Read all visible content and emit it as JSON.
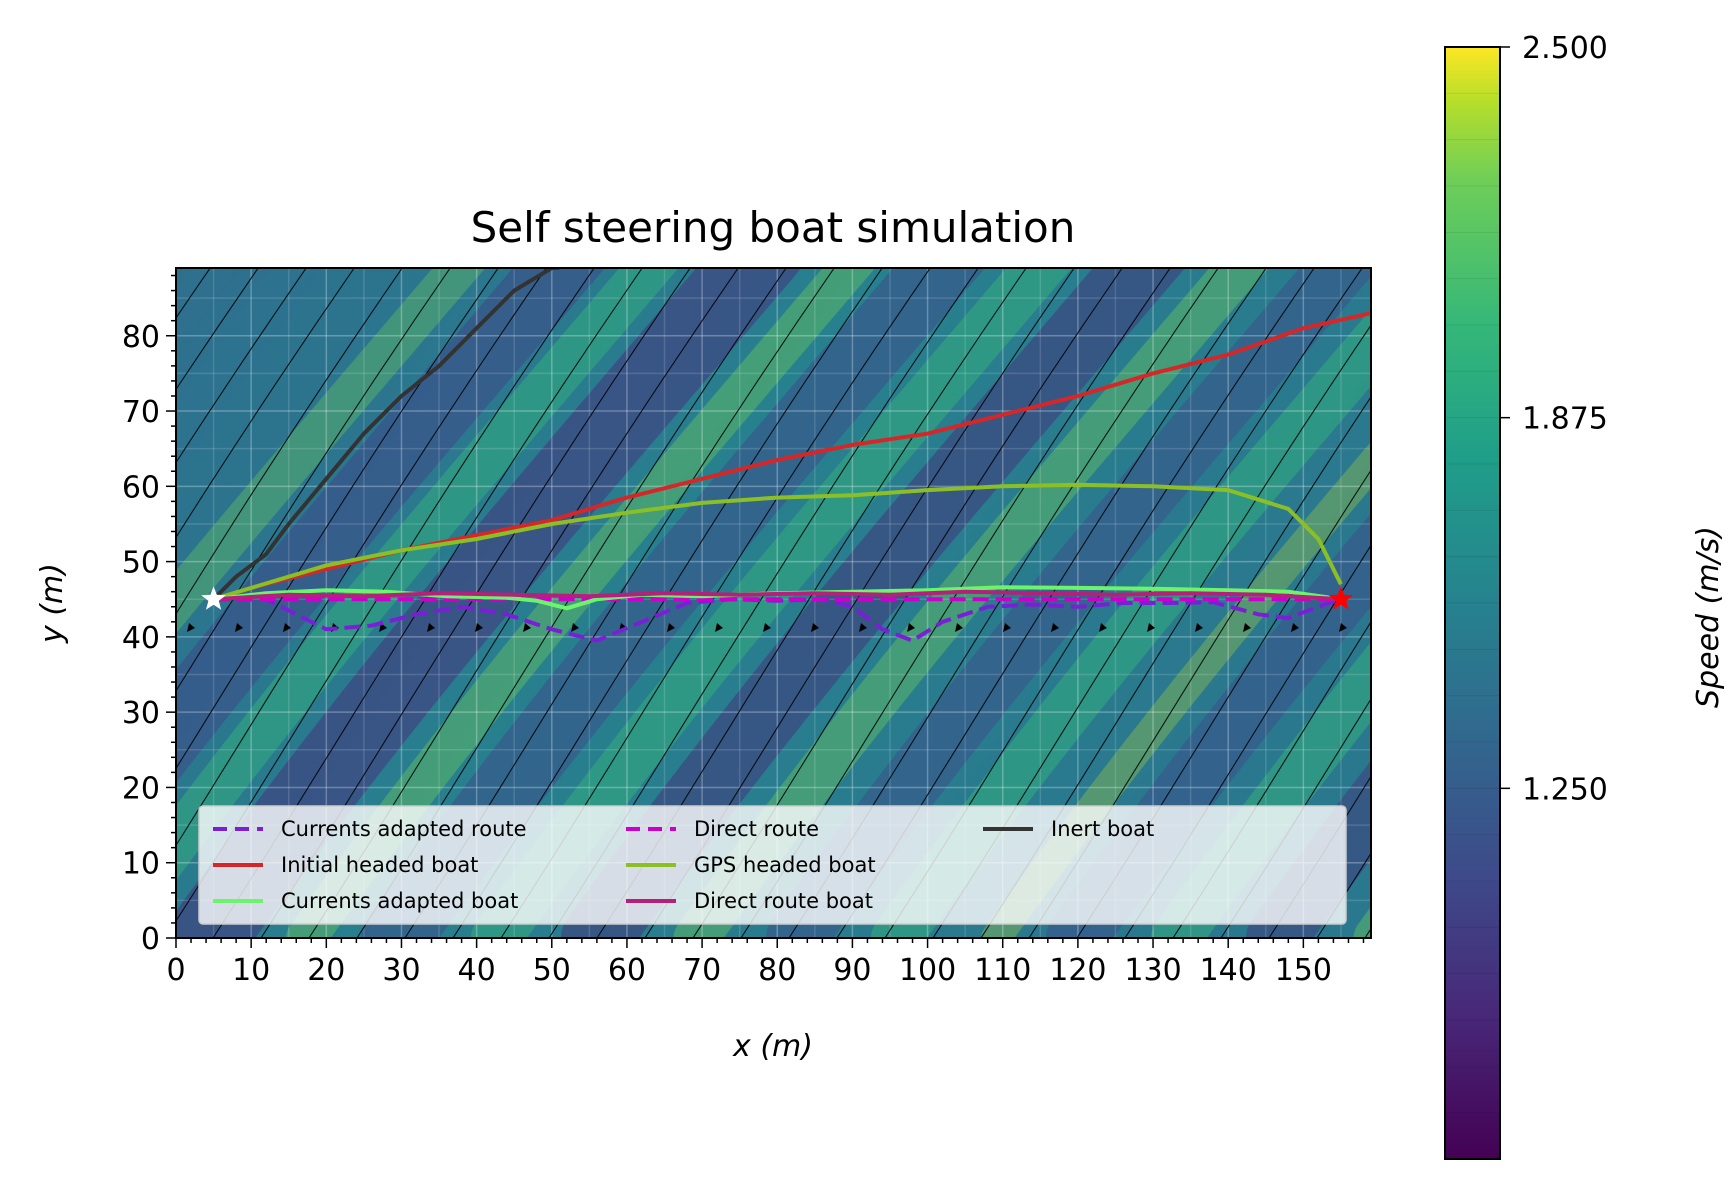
{
  "chart_data": {
    "type": "line",
    "title": "Self steering boat simulation",
    "xlabel": "x (m)",
    "ylabel": "y (m)",
    "xlim": [
      0,
      159
    ],
    "ylim": [
      0,
      89
    ],
    "x_ticks": [
      "0",
      "10",
      "20",
      "30",
      "40",
      "50",
      "60",
      "70",
      "80",
      "90",
      "100",
      "110",
      "120",
      "130",
      "140",
      "150"
    ],
    "y_ticks": [
      "0",
      "10",
      "20",
      "30",
      "40",
      "50",
      "60",
      "70",
      "80"
    ],
    "x_tick_values": [
      0,
      10,
      20,
      30,
      40,
      50,
      60,
      70,
      80,
      90,
      100,
      110,
      120,
      130,
      140,
      150
    ],
    "y_tick_values": [
      0,
      10,
      20,
      30,
      40,
      50,
      60,
      70,
      80
    ],
    "grid": true,
    "background": "current speed heatmap with streamlines (viridis)",
    "start_point": {
      "x": 5,
      "y": 45,
      "color": "#ffffff"
    },
    "end_point": {
      "x": 155,
      "y": 45,
      "color": "#ff0000"
    },
    "legend_placement": "lower-center",
    "series": [
      {
        "name": "Currents adapted route",
        "color": "#7a1fd6",
        "dash": true,
        "x": [
          5,
          12,
          16,
          20,
          26,
          32,
          38,
          44,
          50,
          56,
          62,
          68,
          74,
          80,
          86,
          90,
          94,
          98,
          102,
          108,
          114,
          120,
          126,
          132,
          138,
          144,
          148,
          152,
          155
        ],
        "y": [
          45,
          45,
          43,
          41,
          41.5,
          43,
          44,
          43,
          41,
          39.5,
          42,
          44.5,
          45,
          44.8,
          45,
          44,
          41,
          39.5,
          42,
          44,
          44.3,
          44,
          44.5,
          44.5,
          44.6,
          43,
          42.5,
          44,
          45
        ]
      },
      {
        "name": "Direct route",
        "color": "#cc00cc",
        "dash": true,
        "x": [
          5,
          155
        ],
        "y": [
          45,
          45
        ]
      },
      {
        "name": "Inert boat",
        "color": "#333333",
        "dash": false,
        "x": [
          5,
          8,
          12,
          15,
          20,
          25,
          30,
          35,
          40,
          45,
          50,
          51
        ],
        "y": [
          45,
          48,
          51,
          55,
          61,
          67,
          72,
          76,
          81,
          86,
          89,
          89
        ]
      },
      {
        "name": "Initial headed boat",
        "color": "#d62728",
        "dash": false,
        "x": [
          5,
          10,
          20,
          30,
          40,
          50,
          60,
          70,
          80,
          90,
          100,
          110,
          120,
          130,
          140,
          150,
          159
        ],
        "y": [
          45,
          46.5,
          49,
          51.5,
          53.5,
          55.5,
          58.5,
          61,
          63.5,
          65.5,
          67,
          69.5,
          72,
          75,
          77.5,
          81,
          83
        ]
      },
      {
        "name": "GPS headed boat",
        "color": "#8cbf26",
        "dash": false,
        "x": [
          5,
          10,
          20,
          30,
          40,
          50,
          60,
          70,
          80,
          90,
          100,
          110,
          120,
          130,
          140,
          148,
          152,
          155
        ],
        "y": [
          45,
          46.5,
          49.5,
          51.5,
          53,
          55,
          56.5,
          57.8,
          58.5,
          58.8,
          59.5,
          60,
          60.2,
          60,
          59.5,
          57,
          53,
          47
        ]
      },
      {
        "name": "Currents adapted boat",
        "color": "#6cf56c",
        "dash": false,
        "x": [
          5,
          12,
          20,
          28,
          36,
          44,
          48,
          52,
          56,
          62,
          70,
          80,
          90,
          100,
          110,
          120,
          130,
          140,
          148,
          155
        ],
        "y": [
          45,
          45.8,
          46.2,
          46,
          45.4,
          45.2,
          44.8,
          43.8,
          45,
          45.6,
          45.4,
          45.8,
          46,
          46.2,
          46.6,
          46.5,
          46.4,
          46.2,
          46,
          45
        ]
      },
      {
        "name": "Direct route boat",
        "color": "#b5207a",
        "dash": false,
        "x": [
          5,
          15,
          25,
          35,
          45,
          55,
          65,
          75,
          85,
          95,
          105,
          115,
          125,
          135,
          145,
          155
        ],
        "y": [
          45,
          45.6,
          45.4,
          45.8,
          45.6,
          45.4,
          45.8,
          45.6,
          45.8,
          45.6,
          46,
          45.8,
          45.6,
          45.8,
          45.6,
          45
        ]
      }
    ],
    "colorbar": {
      "label": "Speed (m/s)",
      "ticks": [
        "1.250",
        "1.875",
        "2.500"
      ],
      "tick_values": [
        1.25,
        1.875,
        2.5
      ],
      "range": [
        0.625,
        2.5
      ],
      "colormap": "viridis"
    }
  }
}
